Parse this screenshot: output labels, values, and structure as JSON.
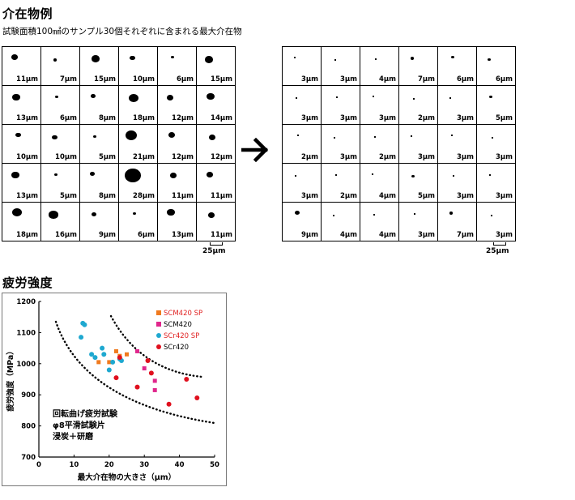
{
  "section1": {
    "title": "介在物例",
    "subtitle": "試験面積100㎟のサンプル30個それぞれに含まれる最大介在物",
    "arrow_icon": "right-arrow-icon",
    "left_grid": {
      "labels": [
        "11μm",
        "7μm",
        "15μm",
        "10μm",
        "6μm",
        "15μm",
        "13μm",
        "6μm",
        "8μm",
        "18μm",
        "12μm",
        "14μm",
        "10μm",
        "10μm",
        "5μm",
        "21μm",
        "12μm",
        "12μm",
        "13μm",
        "5μm",
        "8μm",
        "28μm",
        "11μm",
        "11μm",
        "18μm",
        "16μm",
        "9μm",
        "6μm",
        "13μm",
        "11μm"
      ],
      "scale_label": "25μm"
    },
    "right_grid": {
      "labels": [
        "3μm",
        "3μm",
        "4μm",
        "7μm",
        "6μm",
        "6μm",
        "3μm",
        "3μm",
        "3μm",
        "2μm",
        "3μm",
        "5μm",
        "2μm",
        "3μm",
        "2μm",
        "3μm",
        "3μm",
        "3μm",
        "3μm",
        "2μm",
        "4μm",
        "5μm",
        "3μm",
        "3μm",
        "9μm",
        "4μm",
        "4μm",
        "3μm",
        "7μm",
        "3μm"
      ],
      "scale_label": "25μm"
    }
  },
  "section2": {
    "title": "疲労強度"
  },
  "chart_data": {
    "type": "scatter",
    "xlabel": "最大介在物の大きさ（μm）",
    "ylabel": "疲労強度（MPa）",
    "xlim": [
      0,
      50
    ],
    "ylim": [
      700,
      1200
    ],
    "xticks": [
      0,
      10,
      20,
      30,
      40,
      50
    ],
    "yticks": [
      700,
      800,
      900,
      1000,
      1100,
      1200
    ],
    "grid": false,
    "legend_position": "top-right",
    "annotation": [
      "回転曲げ疲労試験",
      "φ8平滑試験片",
      "浸炭＋研磨"
    ],
    "series": [
      {
        "name": "SCM420 SP",
        "marker": "square",
        "color": "#f07a1e",
        "label_color": "#e02020",
        "points": [
          [
            17,
            1005
          ],
          [
            20,
            1005
          ],
          [
            22,
            1040
          ],
          [
            23,
            1025
          ],
          [
            25,
            1030
          ]
        ]
      },
      {
        "name": "SCM420",
        "marker": "square",
        "color": "#e0268c",
        "label_color": "#000000",
        "points": [
          [
            28,
            1040
          ],
          [
            30,
            985
          ],
          [
            33,
            945
          ],
          [
            33,
            915
          ]
        ]
      },
      {
        "name": "SCr420 SP",
        "marker": "circle",
        "color": "#1ea8d0",
        "label_color": "#e02020",
        "points": [
          [
            12,
            1085
          ],
          [
            12.5,
            1130
          ],
          [
            13,
            1125
          ],
          [
            15,
            1030
          ],
          [
            16,
            1020
          ],
          [
            18,
            1050
          ],
          [
            18.5,
            1030
          ],
          [
            20,
            980
          ],
          [
            21,
            1005
          ],
          [
            23,
            1015
          ],
          [
            23.5,
            1010
          ]
        ]
      },
      {
        "name": "SCr420",
        "marker": "circle",
        "color": "#e0101e",
        "label_color": "#000000",
        "points": [
          [
            22,
            955
          ],
          [
            23,
            1020
          ],
          [
            28,
            925
          ],
          [
            31,
            1010
          ],
          [
            32,
            970
          ],
          [
            37,
            870
          ],
          [
            42,
            950
          ],
          [
            45,
            890
          ]
        ]
      }
    ]
  }
}
